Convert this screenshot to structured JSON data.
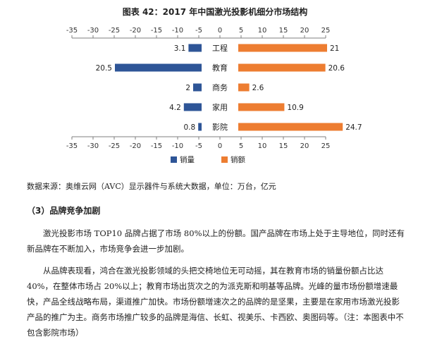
{
  "title": "图表  42：2017 年中国激光投影机细分市场结构",
  "chart_data": {
    "type": "bar",
    "orientation": "horizontal-diverging",
    "categories": [
      "工程",
      "教育",
      "商务",
      "家用",
      "影院"
    ],
    "series": [
      {
        "name": "销量",
        "values": [
          3.1,
          20.5,
          2.0,
          4.2,
          0.8
        ],
        "color": "#2e5597",
        "side": "left"
      },
      {
        "name": "销额",
        "values": [
          21,
          20.6,
          2.6,
          10.9,
          24.7
        ],
        "color": "#ed7d31",
        "side": "right"
      }
    ],
    "xlim": [
      -35,
      25
    ],
    "xticks": [
      "-35",
      "-30",
      "-25",
      "-20",
      "-15",
      "-10",
      "-5",
      "0",
      "5",
      "10",
      "15",
      "20",
      "25"
    ],
    "legend_position": "bottom-center",
    "grid": false
  },
  "source": "数据来源：奥维云网（AVC）显示器件与系统大数据，单位：万台，亿元",
  "section_heading": "（3）品牌竞争加剧",
  "paragraphs": [
    "激光投影市场 TOP10 品牌占据了市场 80%以上的份额。国产品牌在市场上处于主导地位，同时还有新品牌在不断加入，市场竞争会进一步加剧。",
    "从品牌表现看，鸿合在激光投影领域的头把交椅地位无可动摇，其在教育市场的销量份额占比达 40%，在整体市场占 20%以上；教育市场出货次之的为派克斯和明基等品牌。光峰的量市场份额增速最快，产品全线战略布局，渠道推广加快。市场份额增速次之的品牌的是坚果，主要是在家用市场激光投影产品的推广为主。商务市场推广较多的品牌是海信、长虹、视美乐、卡西欧、奥图码等。（注：本图表中不包含影院市场）"
  ]
}
